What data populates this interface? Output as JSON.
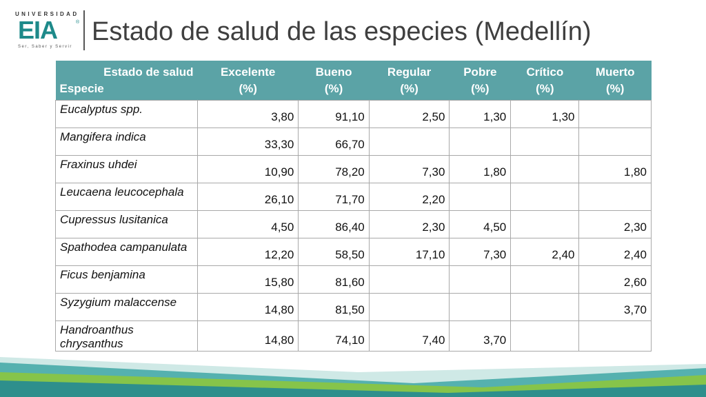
{
  "logo": {
    "top_text": "UNIVERSIDAD",
    "mark": "EIA",
    "reg": "®",
    "sub_text": "Ser, Saber y Servir"
  },
  "title": "Estado de salud de las especies (Medellín)",
  "table": {
    "corner_top": "Estado de salud",
    "corner_bottom": "Especie",
    "columns": [
      {
        "line1": "Excelente",
        "line2": "(%)"
      },
      {
        "line1": "Bueno",
        "line2": "(%)"
      },
      {
        "line1": "Regular",
        "line2": "(%)"
      },
      {
        "line1": "Pobre",
        "line2": "(%)"
      },
      {
        "line1": "Crítico",
        "line2": "(%)"
      },
      {
        "line1": "Muerto",
        "line2": "(%)"
      }
    ],
    "rows": [
      {
        "species": "Eucalyptus spp.",
        "values": [
          "3,80",
          "91,10",
          "2,50",
          "1,30",
          "1,30",
          ""
        ]
      },
      {
        "species": "Mangifera indica",
        "values": [
          "33,30",
          "66,70",
          "",
          "",
          "",
          ""
        ]
      },
      {
        "species": "Fraxinus uhdei",
        "values": [
          "10,90",
          "78,20",
          "7,30",
          "1,80",
          "",
          "1,80"
        ]
      },
      {
        "species": "Leucaena leucocephala",
        "values": [
          "26,10",
          "71,70",
          "2,20",
          "",
          "",
          ""
        ]
      },
      {
        "species": "Cupressus lusitanica",
        "values": [
          "4,50",
          "86,40",
          "2,30",
          "4,50",
          "",
          "2,30"
        ]
      },
      {
        "species": "Spathodea campanulata",
        "values": [
          "12,20",
          "58,50",
          "17,10",
          "7,30",
          "2,40",
          "2,40"
        ]
      },
      {
        "species": "Ficus benjamina",
        "values": [
          "15,80",
          "81,60",
          "",
          "",
          "",
          "2,60"
        ]
      },
      {
        "species": "Syzygium malaccense",
        "values": [
          "14,80",
          "81,50",
          "",
          "",
          "",
          "3,70"
        ]
      },
      {
        "species": "Handroanthus chrysanthus",
        "values": [
          "14,80",
          "74,10",
          "7,40",
          "3,70",
          "",
          ""
        ]
      }
    ]
  },
  "colors": {
    "header": "#5ba3a6",
    "brand": "#1e8a8a",
    "wave_teal": "#3fa7a4",
    "wave_green": "#8cc63f"
  }
}
